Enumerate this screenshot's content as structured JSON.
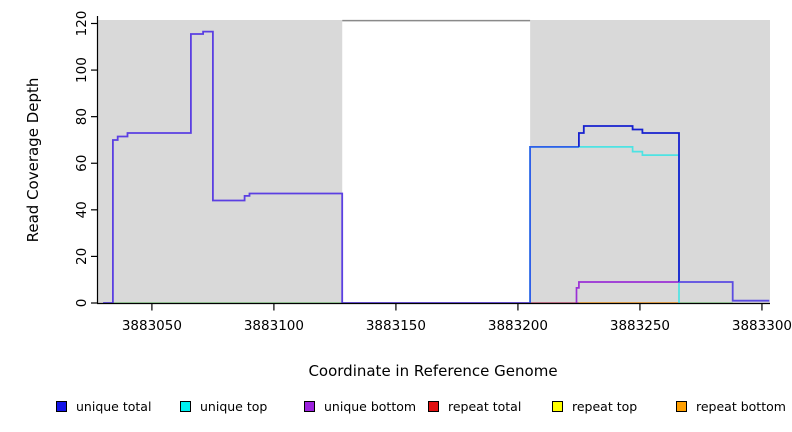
{
  "chart_data": {
    "type": "line",
    "title": "",
    "xlabel": "Coordinate in Reference Genome",
    "ylabel": "Read Coverage Depth",
    "x_domain": [
      3883027.5,
      3883303.3
    ],
    "y_domain": [
      0,
      121.5
    ],
    "x_ticks": [
      3883050,
      3883100,
      3883150,
      3883200,
      3883250,
      3883300
    ],
    "y_ticks": [
      0,
      20,
      40,
      60,
      80,
      100,
      120
    ],
    "grid": "off",
    "shaded_regions": [
      {
        "name": "left-gray-region",
        "x0": 3883027.5,
        "x1": 3883128,
        "color": "#d9d9d9"
      },
      {
        "name": "right-gray-region",
        "x0": 3883205,
        "x1": 3883303.3,
        "color": "#d9d9d9"
      }
    ],
    "gap_top_border": {
      "x0": 3883128,
      "x1": 3883205,
      "color": "#8a8a8a"
    },
    "series": [
      {
        "name": "baseline-green-left",
        "color": "#90d890",
        "width": 1.6,
        "levels": [
          [
            3883030,
            0
          ]
        ],
        "end": 3883128
      },
      {
        "name": "baseline-red",
        "color": "#cd5878",
        "width": 1.6,
        "levels": [
          [
            3883205,
            0
          ]
        ],
        "end": 3883225
      },
      {
        "name": "baseline-orange",
        "color": "#ff9e1b",
        "width": 1.6,
        "levels": [
          [
            3883225,
            0
          ]
        ],
        "end": 3883266
      },
      {
        "name": "baseline-green-right",
        "color": "#90d890",
        "width": 1.6,
        "levels": [
          [
            3883266,
            0
          ]
        ],
        "end": 3883288
      },
      {
        "name": "unique-top",
        "color": "#4de3e3",
        "width": 1.7,
        "levels": [
          [
            3883205,
            0
          ],
          [
            3883205,
            67
          ],
          [
            3883247,
            65
          ],
          [
            3883251,
            63.5
          ],
          [
            3883266,
            0
          ]
        ],
        "end": 3883266
      },
      {
        "name": "unique-bottom",
        "color": "#9b30d5",
        "width": 1.7,
        "levels": [
          [
            3883224,
            0
          ],
          [
            3883224,
            6.5
          ],
          [
            3883225,
            9
          ]
        ],
        "end": 3883266
      },
      {
        "name": "unique-total-over-top-overlap",
        "color": "#2f5fe8",
        "width": 1.8,
        "levels": [
          [
            3883205,
            0
          ],
          [
            3883205,
            67
          ]
        ],
        "end": 3883225
      },
      {
        "name": "unique-total-right",
        "color": "#1620cf",
        "width": 1.8,
        "levels": [
          [
            3883225,
            67
          ],
          [
            3883225,
            73
          ],
          [
            3883227,
            76
          ],
          [
            3883247,
            74.5
          ],
          [
            3883251,
            73
          ],
          [
            3883266,
            9
          ]
        ],
        "end": 3883266
      },
      {
        "name": "unique-total-tail",
        "color": "#5b4be2",
        "width": 1.8,
        "levels": [
          [
            3883266,
            9
          ],
          [
            3883288,
            1
          ]
        ],
        "end": 3883303
      },
      {
        "name": "unique-total-left",
        "color": "#5b3fe2",
        "width": 1.8,
        "levels": [
          [
            3883030,
            0
          ],
          [
            3883034,
            70
          ],
          [
            3883036,
            71.5
          ],
          [
            3883040,
            73
          ],
          [
            3883066,
            115.5
          ],
          [
            3883071,
            116.5
          ],
          [
            3883075,
            44
          ],
          [
            3883088,
            46
          ],
          [
            3883090,
            47
          ],
          [
            3883128,
            0
          ]
        ],
        "end": 3883205
      }
    ]
  },
  "legend": {
    "items": [
      {
        "label": "unique total",
        "color": "#1414e8"
      },
      {
        "label": "unique top",
        "color": "#00f0f0"
      },
      {
        "label": "unique bottom",
        "color": "#9c22dd"
      },
      {
        "label": "repeat total",
        "color": "#e01010"
      },
      {
        "label": "repeat top",
        "color": "#ffff00"
      },
      {
        "label": "repeat bottom",
        "color": "#ff9f00"
      }
    ]
  }
}
